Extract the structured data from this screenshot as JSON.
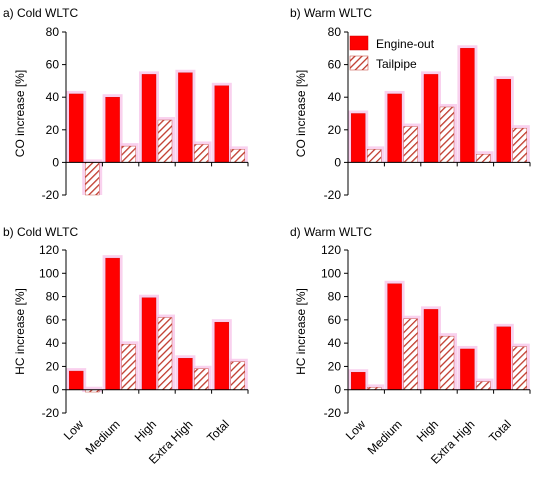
{
  "colors": {
    "engine_out": "#ff0000",
    "tailpipe_hatch": "#c0392b",
    "error_bar": "#f7c6ea",
    "axis": "#000000"
  },
  "legend": {
    "engine_out": "Engine-out",
    "tailpipe": "Tailpipe"
  },
  "chart_data": [
    {
      "type": "bar",
      "title": "a) Cold WLTC",
      "ylabel": "CO increase [%]",
      "ylim": [
        -20,
        80
      ],
      "yticks": [
        -20,
        0,
        20,
        40,
        60,
        80
      ],
      "categories": [
        "Low",
        "Medium",
        "High",
        "Extra High",
        "Total"
      ],
      "series": [
        {
          "name": "Engine-out",
          "values": [
            42,
            40,
            54,
            55,
            47
          ]
        },
        {
          "name": "Tailpipe",
          "values": [
            -20,
            10,
            26,
            11,
            8
          ]
        }
      ]
    },
    {
      "type": "bar",
      "title": "b) Warm WLTC",
      "ylabel": "CO increase [%]",
      "ylim": [
        -20,
        80
      ],
      "yticks": [
        -20,
        0,
        20,
        40,
        60,
        80
      ],
      "categories": [
        "Low",
        "Medium",
        "High",
        "Extra High",
        "Total"
      ],
      "series": [
        {
          "name": "Engine-out",
          "values": [
            30,
            42,
            54,
            70,
            51
          ]
        },
        {
          "name": "Tailpipe",
          "values": [
            8,
            22,
            34,
            5,
            21
          ]
        }
      ]
    },
    {
      "type": "bar",
      "title": "b) Cold WLTC",
      "ylabel": "HC increase [%]",
      "ylim": [
        -20,
        120
      ],
      "yticks": [
        -20,
        0,
        20,
        40,
        60,
        80,
        100,
        120
      ],
      "categories": [
        "Low",
        "Medium",
        "High",
        "Extra High",
        "Total"
      ],
      "series": [
        {
          "name": "Engine-out",
          "values": [
            16,
            113,
            79,
            27,
            58
          ]
        },
        {
          "name": "Tailpipe",
          "values": [
            -2,
            39,
            62,
            18,
            24
          ]
        }
      ]
    },
    {
      "type": "bar",
      "title": "d) Warm WLTC",
      "ylabel": "HC increase [%]",
      "ylim": [
        -20,
        120
      ],
      "yticks": [
        -20,
        0,
        20,
        40,
        60,
        80,
        100,
        120
      ],
      "categories": [
        "Low",
        "Medium",
        "High",
        "Extra High",
        "Total"
      ],
      "series": [
        {
          "name": "Engine-out",
          "values": [
            15,
            91,
            69,
            35,
            54
          ]
        },
        {
          "name": "Tailpipe",
          "values": [
            2,
            61,
            46,
            7,
            37
          ]
        }
      ]
    }
  ]
}
